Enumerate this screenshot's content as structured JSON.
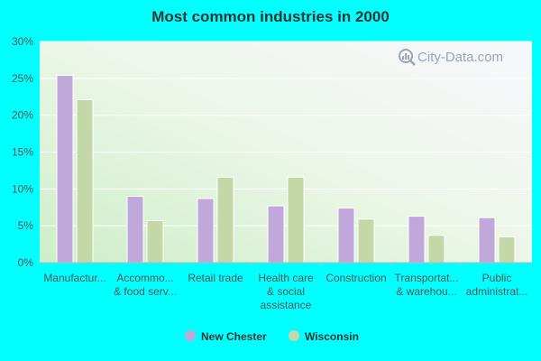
{
  "chart_data": {
    "type": "bar",
    "title": "Most common industries in 2000",
    "categories": [
      [
        "Manufactur..."
      ],
      [
        "Accommo...",
        "& food serv..."
      ],
      [
        "Retail trade"
      ],
      [
        "Health care",
        "& social",
        "assistance"
      ],
      [
        "Construction"
      ],
      [
        "Transportat...",
        "& warehou..."
      ],
      [
        "Public",
        "administrat..."
      ]
    ],
    "series": [
      {
        "name": "New Chester",
        "color": "#c0a8db",
        "values": [
          25.4,
          9.0,
          8.7,
          7.7,
          7.4,
          6.3,
          6.1
        ]
      },
      {
        "name": "Wisconsin",
        "color": "#c3d8a6",
        "values": [
          22.1,
          5.7,
          11.6,
          11.6,
          5.9,
          3.7,
          3.5
        ]
      }
    ],
    "ylim": [
      0,
      30
    ],
    "yticks": [
      0,
      5,
      10,
      15,
      20,
      25,
      30
    ],
    "ytick_labels": [
      "0%",
      "5%",
      "10%",
      "15%",
      "20%",
      "25%",
      "30%"
    ],
    "grid": true,
    "legend_position": "bottom-center",
    "watermark": "City-Data.com"
  }
}
